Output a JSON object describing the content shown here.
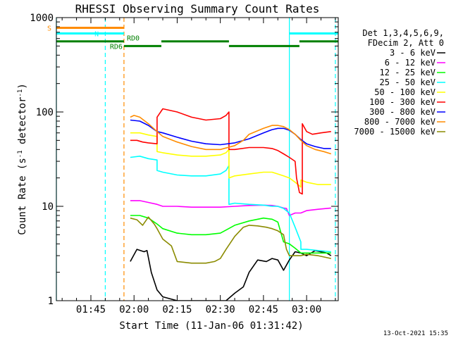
{
  "chart_data": {
    "type": "line",
    "title": "RHESSI Observing Summary Count Rates",
    "xlabel": "Start Time (11-Jan-06 01:31:42)",
    "ylabel_main": "Count Rate (s",
    "ylabel_sup1": "-1",
    "ylabel_mid": " detector",
    "ylabel_sup2": "-1",
    "ylabel_end": ")",
    "yscale": "log",
    "xlim": [
      93,
      191
    ],
    "ylim": [
      1,
      1000
    ],
    "x_unit": "minutes after 00:00 UT, 11-Jan-06",
    "x_ticks": [
      {
        "value": 105,
        "label": "01:45"
      },
      {
        "value": 120,
        "label": "02:00"
      },
      {
        "value": 135,
        "label": "02:15"
      },
      {
        "value": 150,
        "label": "02:30"
      },
      {
        "value": 165,
        "label": "02:45"
      },
      {
        "value": 180,
        "label": "03:00"
      }
    ],
    "y_ticks": [
      {
        "value": 1,
        "label": "1"
      },
      {
        "value": 10,
        "label": "10"
      },
      {
        "value": 100,
        "label": "100"
      },
      {
        "value": 1000,
        "label": "1000"
      }
    ],
    "legend": {
      "position": "top-right",
      "header": [
        "Det 1,3,4,5,6,9,",
        "FDecim 2, Att 0"
      ]
    },
    "series": [
      {
        "name": "3 - 6 keV",
        "color": "#000000",
        "x": [
          118.7,
          121,
          123.5,
          124.5,
          126,
          128,
          130,
          135,
          140,
          145,
          148,
          150,
          152,
          155,
          158,
          160,
          163,
          166,
          168,
          170,
          172,
          174,
          176,
          178,
          180,
          183,
          187,
          188.5
        ],
        "y": [
          2.6,
          3.5,
          3.3,
          3.4,
          2,
          1.3,
          1.1,
          1,
          1,
          1,
          1,
          1,
          1,
          1.2,
          1.4,
          2,
          2.7,
          2.6,
          2.8,
          2.7,
          2.1,
          2.7,
          3.3,
          3.2,
          3,
          3.4,
          3.2,
          3
        ]
      },
      {
        "name": "6 - 12 keV",
        "color": "#ff00ff",
        "x": [
          118.7,
          122,
          125,
          128,
          130,
          135,
          140,
          145,
          150,
          155,
          160,
          165,
          168,
          170,
          172,
          173,
          174,
          176,
          178,
          180,
          184,
          188.5
        ],
        "y": [
          11.5,
          11.5,
          11,
          10.5,
          10,
          10,
          9.8,
          9.8,
          9.8,
          10,
          10.2,
          10.3,
          10.2,
          10,
          9.6,
          9.5,
          8,
          8.5,
          8.5,
          9,
          9.3,
          9.6
        ]
      },
      {
        "name": "12 - 25 keV",
        "color": "#00ff00",
        "x": [
          118.7,
          122,
          125,
          128,
          130,
          135,
          140,
          145,
          150,
          152,
          155,
          160,
          165,
          168,
          170,
          172,
          174,
          176,
          178,
          180,
          184,
          188.5
        ],
        "y": [
          8,
          8,
          7.5,
          6.5,
          5.8,
          5.2,
          5,
          5,
          5.2,
          5.6,
          6.3,
          7,
          7.5,
          7.3,
          6.8,
          4.2,
          4,
          3.6,
          3.2,
          3.2,
          3.2,
          3.2
        ]
      },
      {
        "name": "25 - 50 keV",
        "color": "#00ffff",
        "x": [
          118.7,
          122,
          125,
          128,
          128.01,
          130,
          135,
          140,
          145,
          150,
          152,
          153,
          153.01,
          155,
          160,
          165,
          168,
          170,
          172,
          174,
          176,
          178,
          178.01,
          180,
          184,
          188.5
        ],
        "y": [
          33,
          34,
          32,
          31,
          24,
          23,
          21.5,
          21,
          21,
          22,
          24,
          27,
          10.5,
          10.8,
          10.5,
          10.3,
          10,
          10,
          9.5,
          8.5,
          6,
          4.2,
          3.5,
          3.5,
          3.4,
          3.3
        ]
      },
      {
        "name": "50 - 100 keV",
        "color": "#ffff00",
        "x": [
          118.7,
          122,
          125,
          128,
          128.01,
          130,
          135,
          140,
          145,
          150,
          152,
          153,
          153.01,
          155,
          160,
          165,
          168,
          170,
          172,
          174,
          176,
          178,
          178.01,
          180,
          184,
          188.5
        ],
        "y": [
          60,
          60,
          57,
          55,
          38,
          37,
          35,
          34,
          34,
          35,
          37,
          40,
          20,
          21,
          22,
          23,
          23,
          22,
          21,
          20,
          18,
          16,
          19,
          18,
          17,
          17
        ]
      },
      {
        "name": "100 - 300 keV",
        "color": "#ff0000",
        "x": [
          118.7,
          121,
          123,
          125,
          128,
          128.01,
          130,
          135,
          140,
          145,
          150,
          152,
          153,
          153.01,
          155,
          160,
          165,
          168,
          170,
          172,
          174,
          176,
          176.5,
          177.5,
          178.5,
          178.51,
          180,
          182,
          185,
          188.5
        ],
        "y": [
          50,
          50,
          48,
          47,
          46,
          88,
          108,
          100,
          88,
          82,
          85,
          92,
          100,
          40,
          40,
          42,
          42,
          41,
          39,
          36,
          33,
          30,
          20,
          14,
          13.5,
          75,
          62,
          58,
          60,
          62
        ]
      },
      {
        "name": "300 - 800 keV",
        "color": "#0000ff",
        "x": [
          118.7,
          122,
          125,
          128,
          130,
          135,
          140,
          145,
          150,
          155,
          160,
          165,
          168,
          170,
          172,
          174,
          176,
          178,
          180,
          183,
          186,
          188.5
        ],
        "y": [
          82,
          80,
          72,
          62,
          60,
          54,
          49,
          46,
          45,
          47,
          52,
          60,
          65,
          67,
          67,
          64,
          58,
          51,
          46,
          43,
          41,
          41
        ]
      },
      {
        "name": "800 - 7000 keV",
        "color": "#ff8c00",
        "x": [
          118.7,
          120,
          122,
          125,
          128,
          130,
          135,
          140,
          145,
          150,
          155,
          158,
          160,
          165,
          168,
          170,
          172,
          174,
          176,
          178,
          180,
          183,
          186,
          188.5
        ],
        "y": [
          88,
          92,
          88,
          75,
          62,
          55,
          48,
          43,
          40,
          40,
          44,
          50,
          58,
          67,
          72,
          72,
          70,
          65,
          58,
          50,
          44,
          40,
          38,
          36
        ]
      },
      {
        "name": "7000 - 15000 keV",
        "color": "#8b8b00",
        "x": [
          118.7,
          121,
          123,
          125,
          127,
          128,
          130,
          133,
          135,
          140,
          145,
          148,
          150,
          152,
          155,
          158,
          160,
          163,
          166,
          168,
          170,
          172,
          173,
          174,
          176,
          178,
          180,
          184,
          188.5
        ],
        "y": [
          7.5,
          7.2,
          6.3,
          7.7,
          6.5,
          5.8,
          4.5,
          3.8,
          2.6,
          2.5,
          2.5,
          2.6,
          2.8,
          3.5,
          4.8,
          6,
          6.3,
          6.2,
          6,
          5.8,
          5.5,
          5,
          3.5,
          3,
          3,
          3,
          3.1,
          3,
          2.8
        ]
      }
    ],
    "attenuator_bars": {
      "label_S": "S",
      "label_N": "N",
      "label_RD0": "RD0",
      "label_RD6": "RD6",
      "S": {
        "color": "#ff8c00",
        "level": 780,
        "segments": [
          [
            93,
            116.5
          ]
        ]
      },
      "N": {
        "color": "#00ffff",
        "level": 680,
        "segments": [
          [
            93,
            116.5
          ],
          [
            174,
            191
          ]
        ]
      },
      "RD0": {
        "color": "#008000",
        "level": 560,
        "segments": [
          [
            93,
            116.5
          ],
          [
            129.5,
            153
          ],
          [
            177.5,
            191
          ]
        ]
      },
      "RD6": {
        "color": "#008000",
        "level": 500,
        "segments": [
          [
            116.5,
            129.5
          ],
          [
            153,
            177.5
          ]
        ]
      }
    },
    "vertical_lines": [
      {
        "x": 93,
        "color": "#00ffff",
        "dashed": false
      },
      {
        "x": 110,
        "color": "#00ffff",
        "dashed": true
      },
      {
        "x": 116.5,
        "color": "#ff8c00",
        "dashed": true
      },
      {
        "x": 174,
        "color": "#00ffff",
        "dashed": false
      },
      {
        "x": 190,
        "color": "#00ffff",
        "dashed": true
      }
    ]
  },
  "footer": {
    "timestamp": "13-Oct-2021 15:35"
  }
}
